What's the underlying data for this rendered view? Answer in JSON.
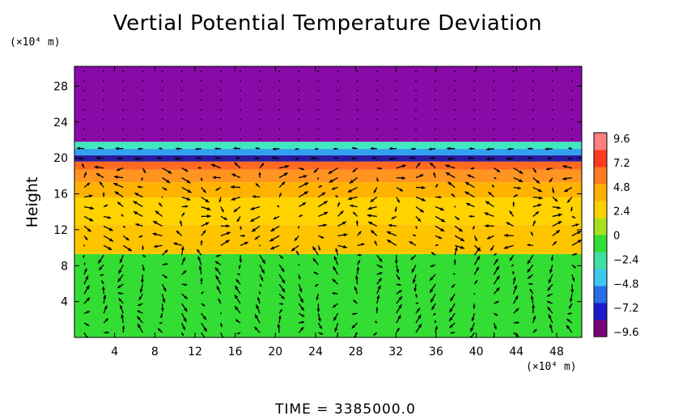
{
  "chart_data": {
    "type": "heatmap",
    "title": "Vertial Potential Temperature Deviation",
    "ylabel": "Height",
    "y_unit": "(×10⁴ m)",
    "x_unit": "(×10⁴ m)",
    "x_ticks": [
      4,
      8,
      12,
      16,
      20,
      24,
      28,
      32,
      36,
      40,
      44,
      48
    ],
    "y_ticks": [
      4,
      8,
      12,
      16,
      20,
      24,
      28
    ],
    "xlim": [
      0,
      50.5
    ],
    "ylim": [
      0,
      30.2
    ],
    "colorbar": {
      "ticks": [
        9.6,
        7.2,
        4.8,
        2.4,
        0,
        -2.4,
        -4.8,
        -7.2,
        -9.6
      ],
      "tick_labels": [
        "9.6",
        "7.2",
        "4.8",
        "2.4",
        "0",
        "−2.4",
        "−4.8",
        "−7.2",
        "−9.6"
      ],
      "range": [
        -9.6,
        9.6
      ],
      "colors": [
        "#7a007a",
        "#1a1acc",
        "#2a6ee8",
        "#3ec8f0",
        "#40e0a0",
        "#33dd33",
        "#a8e020",
        "#ffd000",
        "#ffb000",
        "#ff7a20",
        "#ff3a20",
        "#ff8080"
      ]
    },
    "layers": [
      {
        "y_range": [
          0,
          9.3
        ],
        "value": 0.5,
        "color": "#33dd33"
      },
      {
        "y_range": [
          9.3,
          12.6
        ],
        "value": 3.8,
        "color": "#ffc400"
      },
      {
        "y_range": [
          12.6,
          15.6
        ],
        "value": 4.6,
        "color": "#ffd200"
      },
      {
        "y_range": [
          15.6,
          17.3
        ],
        "value": 5.2,
        "color": "#ffb300"
      },
      {
        "y_range": [
          17.3,
          18.7
        ],
        "value": 6.4,
        "color": "#ff9520"
      },
      {
        "y_range": [
          18.7,
          19.6
        ],
        "value": 7.8,
        "color": "#ff6a20"
      },
      {
        "y_range": [
          19.6,
          20.3
        ],
        "value": -9.6,
        "color": "#2a1aa0"
      },
      {
        "y_range": [
          20.3,
          21.0
        ],
        "value": -3.5,
        "color": "#30a0f0"
      },
      {
        "y_range": [
          21.0,
          21.8
        ],
        "value": -2.0,
        "color": "#40e8c0"
      },
      {
        "y_range": [
          21.8,
          30.2
        ],
        "value": -10.0,
        "color": "#8a0aa8"
      }
    ],
    "time_label": "TIME",
    "time_value": "3385000.0"
  }
}
